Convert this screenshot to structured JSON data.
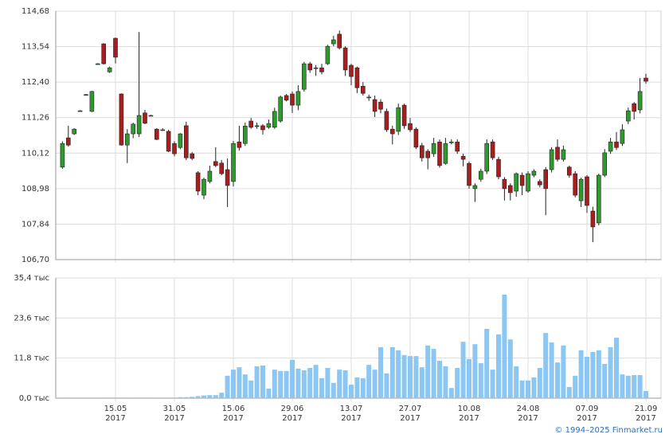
{
  "chart_data": [
    {
      "type": "candlestick",
      "categories": [
        null,
        null,
        null,
        null,
        null,
        null,
        null,
        null,
        null,
        null,
        null,
        null,
        null,
        null,
        null,
        null,
        null,
        null,
        null,
        null,
        null,
        null,
        null,
        null,
        null,
        null,
        null,
        null,
        null,
        null,
        null,
        null,
        null,
        null,
        null,
        null,
        null,
        null,
        null,
        null,
        null,
        null,
        null,
        null,
        null,
        null,
        null,
        null,
        null,
        null,
        null,
        null,
        null,
        null,
        null,
        null,
        null,
        null,
        null,
        null,
        null,
        null,
        null,
        null,
        null,
        null,
        null,
        null,
        null,
        null,
        null,
        null,
        null,
        null,
        null,
        null,
        null,
        null,
        null,
        null,
        null,
        null,
        null,
        null,
        null,
        null,
        null,
        null,
        null,
        null,
        null,
        null,
        null,
        null,
        null,
        null,
        null,
        null,
        null,
        null
      ],
      "up_color": "#2e9a2e",
      "down_color": "#a81e1e",
      "open": [
        109.67,
        110.61,
        110.74,
        111.48,
        112.0,
        111.46,
        112.99,
        113.63,
        112.73,
        113.81,
        112.02,
        110.38,
        110.74,
        110.74,
        111.41,
        111.33,
        110.89,
        110.87,
        110.82,
        110.43,
        110.3,
        111.0,
        110.1,
        109.49,
        108.77,
        109.21,
        109.85,
        109.8,
        109.59,
        109.21,
        110.48,
        110.43,
        111.15,
        111.0,
        111.0,
        110.95,
        110.95,
        111.15,
        111.97,
        112.02,
        111.66,
        112.17,
        112.99,
        112.86,
        112.86,
        112.99,
        113.63,
        113.94,
        113.5,
        112.94,
        112.86,
        112.27,
        111.92,
        111.84,
        111.76,
        111.46,
        110.89,
        110.82,
        111.66,
        111.07,
        110.89,
        110.36,
        110.18,
        110.1,
        110.48,
        109.79,
        110.48,
        110.48,
        110.02,
        109.79,
        108.98,
        109.28,
        109.54,
        110.48,
        109.92,
        109.28,
        109.08,
        108.9,
        109.41,
        108.9,
        109.41,
        109.21,
        109.59,
        109.59,
        110.31,
        109.92,
        109.67,
        109.46,
        108.59,
        109.36,
        108.26,
        107.88,
        109.41,
        110.18,
        110.48,
        110.43,
        111.15,
        111.71,
        111.51,
        112.53
      ],
      "high": [
        110.5,
        111.0,
        110.92,
        111.5,
        112.02,
        112.12,
        113.01,
        113.65,
        112.9,
        113.83,
        112.04,
        110.89,
        111.1,
        114.01,
        111.51,
        111.35,
        110.92,
        110.92,
        110.87,
        110.5,
        110.76,
        111.13,
        110.15,
        109.54,
        109.33,
        109.72,
        110.31,
        109.9,
        109.95,
        110.51,
        111.0,
        111.1,
        111.25,
        111.1,
        111.05,
        111.2,
        111.58,
        111.97,
        112.02,
        112.1,
        112.3,
        113.05,
        113.05,
        112.95,
        112.99,
        113.6,
        113.89,
        114.06,
        113.55,
        112.99,
        112.9,
        112.4,
        112.0,
        111.97,
        111.85,
        111.55,
        111.0,
        111.71,
        111.71,
        111.25,
        110.95,
        110.45,
        110.25,
        110.61,
        110.56,
        110.61,
        110.56,
        110.56,
        110.1,
        109.85,
        109.15,
        109.62,
        110.56,
        110.56,
        110.0,
        109.35,
        109.15,
        109.5,
        109.5,
        109.54,
        109.6,
        109.28,
        109.67,
        110.31,
        110.56,
        110.36,
        109.72,
        109.54,
        109.33,
        109.41,
        108.4,
        109.46,
        110.25,
        110.61,
        110.8,
        111.05,
        111.58,
        111.76,
        112.53,
        112.67
      ],
      "low": [
        109.62,
        110.33,
        110.7,
        111.46,
        111.98,
        111.44,
        112.97,
        112.97,
        112.7,
        113.0,
        110.36,
        109.8,
        110.6,
        110.64,
        111.05,
        111.31,
        110.54,
        110.84,
        110.15,
        110.02,
        110.25,
        109.9,
        109.9,
        108.77,
        108.64,
        109.15,
        109.67,
        109.41,
        108.39,
        109.05,
        110.2,
        110.35,
        110.9,
        110.9,
        110.72,
        110.9,
        110.9,
        111.1,
        111.78,
        111.41,
        111.5,
        112.1,
        112.7,
        112.6,
        112.65,
        112.95,
        113.55,
        113.45,
        112.6,
        112.3,
        112.05,
        111.97,
        111.8,
        111.28,
        111.4,
        110.8,
        110.4,
        110.7,
        110.9,
        110.8,
        110.25,
        109.85,
        109.6,
        110.0,
        109.65,
        109.75,
        110.4,
        110.1,
        109.7,
        108.98,
        108.55,
        109.2,
        109.45,
        109.9,
        109.28,
        108.6,
        108.6,
        108.72,
        108.77,
        108.85,
        109.35,
        109.02,
        108.13,
        109.5,
        109.85,
        109.85,
        109.33,
        108.7,
        108.39,
        108.2,
        107.26,
        107.8,
        109.35,
        110.1,
        110.22,
        110.35,
        111.05,
        111.2,
        111.4,
        112.35
      ],
      "close": [
        110.43,
        110.38,
        110.89,
        111.48,
        112.0,
        112.1,
        112.99,
        112.99,
        112.86,
        113.2,
        110.38,
        110.74,
        111.05,
        111.33,
        111.08,
        111.33,
        110.56,
        110.87,
        110.18,
        110.1,
        110.74,
        109.97,
        109.95,
        108.9,
        109.28,
        109.54,
        109.72,
        109.46,
        109.08,
        110.43,
        110.3,
        110.99,
        110.95,
        111.0,
        110.87,
        111.07,
        111.46,
        111.92,
        111.82,
        111.66,
        112.1,
        112.99,
        112.79,
        112.86,
        112.73,
        113.55,
        113.76,
        113.5,
        112.79,
        112.58,
        112.22,
        112.04,
        111.92,
        111.46,
        111.53,
        110.87,
        110.74,
        111.58,
        111.0,
        110.87,
        110.31,
        109.97,
        109.97,
        110.43,
        109.72,
        110.43,
        110.48,
        110.18,
        109.92,
        109.08,
        109.08,
        109.54,
        110.43,
        109.97,
        109.36,
        108.98,
        108.85,
        109.46,
        109.08,
        109.46,
        109.54,
        109.1,
        108.98,
        110.23,
        109.92,
        110.23,
        109.41,
        108.77,
        109.28,
        108.44,
        107.75,
        109.41,
        110.13,
        110.48,
        110.3,
        110.87,
        111.48,
        111.46,
        112.1,
        112.43
      ],
      "ylim": [
        106.7,
        114.68
      ],
      "yticks": [
        {
          "value": 106.7,
          "label": "106,70"
        },
        {
          "value": 107.84,
          "label": "107,84"
        },
        {
          "value": 108.98,
          "label": "108,98"
        },
        {
          "value": 110.12,
          "label": "110,12"
        },
        {
          "value": 111.26,
          "label": "111,26"
        },
        {
          "value": 112.4,
          "label": "112,40"
        },
        {
          "value": 113.54,
          "label": "113,54"
        },
        {
          "value": 114.68,
          "label": "114,68"
        }
      ],
      "grid": true
    },
    {
      "type": "bar",
      "color": "#8cc6f2",
      "values": [
        0.2,
        0.2,
        0.2,
        0.2,
        0.2,
        0.2,
        0.2,
        0.2,
        0.2,
        0.2,
        0.2,
        0.2,
        0.2,
        0.2,
        0.2,
        0.2,
        0.2,
        0.2,
        0.2,
        0.2,
        0.3,
        0.3,
        0.4,
        0.6,
        0.8,
        0.9,
        0.9,
        1.6,
        6.6,
        8.4,
        9.1,
        7.0,
        5.2,
        9.4,
        9.6,
        2.8,
        8.4,
        8.0,
        8.0,
        11.3,
        8.7,
        8.2,
        8.9,
        9.8,
        5.9,
        8.9,
        4.5,
        8.4,
        8.2,
        4.0,
        6.1,
        5.9,
        9.8,
        8.4,
        15.0,
        7.3,
        15.0,
        14.1,
        12.7,
        12.4,
        12.4,
        9.1,
        15.5,
        14.5,
        11.0,
        9.4,
        3.0,
        8.9,
        16.6,
        11.5,
        15.9,
        10.3,
        20.4,
        8.4,
        18.8,
        30.5,
        17.3,
        9.4,
        5.2,
        5.2,
        6.1,
        8.9,
        19.2,
        16.4,
        10.5,
        15.5,
        3.3,
        6.6,
        14.1,
        12.2,
        13.6,
        14.1,
        10.1,
        15.0,
        17.8,
        7.0,
        6.6,
        6.8,
        6.8,
        2.1
      ],
      "ylim": [
        0,
        35.4
      ],
      "yticks": [
        {
          "value": 0,
          "label": "0,0 тыс"
        },
        {
          "value": 11.8,
          "label": "11,8 тыс"
        },
        {
          "value": 23.6,
          "label": "23,6 тыс"
        },
        {
          "value": 35.4,
          "label": "35,4 тыс"
        }
      ],
      "xticks": [
        {
          "value": 9,
          "label": "15.05\n2017"
        },
        {
          "value": 19,
          "label": "31.05\n2017"
        },
        {
          "value": 29,
          "label": "15.06\n2017"
        },
        {
          "value": 39,
          "label": "29.06\n2017"
        },
        {
          "value": 49,
          "label": "13.07\n2017"
        },
        {
          "value": 59,
          "label": "27.07\n2017"
        },
        {
          "value": 69,
          "label": "10.08\n2017"
        },
        {
          "value": 79,
          "label": "24.08\n2017"
        },
        {
          "value": 89,
          "label": "07.09\n2017"
        },
        {
          "value": 99,
          "label": "21.09\n2017"
        }
      ],
      "grid": true,
      "credit": "© 1994–2025 Finmarket.ru"
    }
  ]
}
